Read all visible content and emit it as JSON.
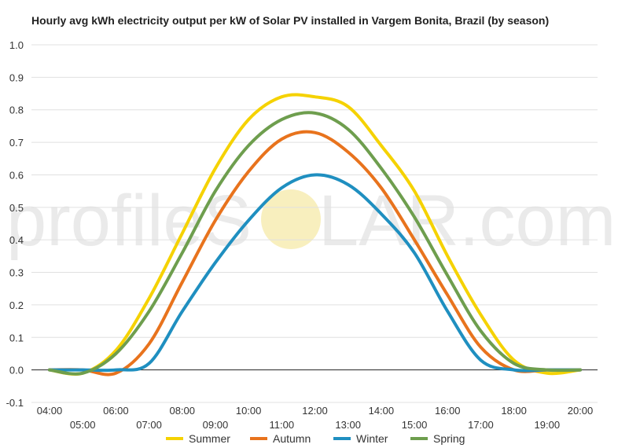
{
  "chart_data": {
    "type": "line",
    "title": "Hourly avg kWh electricity output per kW of Solar PV installed in Vargem Bonita, Brazil (by season)",
    "xlabel": "",
    "ylabel": "",
    "x": [
      "04:00",
      "05:00",
      "06:00",
      "07:00",
      "08:00",
      "09:00",
      "10:00",
      "11:00",
      "12:00",
      "13:00",
      "14:00",
      "15:00",
      "16:00",
      "17:00",
      "18:00",
      "19:00",
      "20:00"
    ],
    "ylim": [
      -0.1,
      1.0
    ],
    "yticks": [
      "-0.1",
      "0.0",
      "0.1",
      "0.2",
      "0.3",
      "0.4",
      "0.5",
      "0.6",
      "0.7",
      "0.8",
      "0.9",
      "1.0"
    ],
    "grid": true,
    "legend": "bottom",
    "series": [
      {
        "name": "Summer",
        "color": "#f5d200",
        "values": [
          0.0,
          -0.01,
          0.06,
          0.22,
          0.42,
          0.62,
          0.77,
          0.84,
          0.84,
          0.81,
          0.69,
          0.55,
          0.35,
          0.17,
          0.03,
          -0.01,
          0.0
        ]
      },
      {
        "name": "Autumn",
        "color": "#e8731d",
        "values": [
          0.0,
          0.0,
          -0.01,
          0.08,
          0.27,
          0.46,
          0.61,
          0.71,
          0.73,
          0.67,
          0.56,
          0.4,
          0.23,
          0.07,
          0.0,
          0.0,
          0.0
        ]
      },
      {
        "name": "Winter",
        "color": "#1f8fc0",
        "values": [
          0.0,
          0.0,
          0.0,
          0.02,
          0.18,
          0.33,
          0.46,
          0.56,
          0.6,
          0.57,
          0.48,
          0.36,
          0.18,
          0.03,
          0.0,
          0.0,
          0.0
        ]
      },
      {
        "name": "Spring",
        "color": "#6e9e4e",
        "values": [
          0.0,
          -0.01,
          0.05,
          0.18,
          0.36,
          0.55,
          0.69,
          0.77,
          0.79,
          0.74,
          0.62,
          0.47,
          0.29,
          0.12,
          0.02,
          0.0,
          0.0
        ]
      }
    ]
  },
  "watermark": {
    "part1": "profileS",
    "part2": "LAR.com",
    "sun_color": "#f5e9a8"
  }
}
